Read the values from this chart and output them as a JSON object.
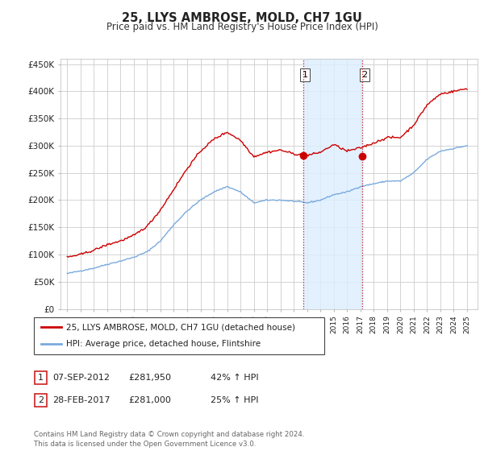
{
  "title": "25, LLYS AMBROSE, MOLD, CH7 1GU",
  "subtitle": "Price paid vs. HM Land Registry's House Price Index (HPI)",
  "sale1_date": "07-SEP-2012",
  "sale1_price": 281950,
  "sale1_hpi": "42% ↑ HPI",
  "sale2_date": "28-FEB-2017",
  "sale2_price": 281000,
  "sale2_hpi": "25% ↑ HPI",
  "legend1": "25, LLYS AMBROSE, MOLD, CH7 1GU (detached house)",
  "legend2": "HPI: Average price, detached house, Flintshire",
  "footer": "Contains HM Land Registry data © Crown copyright and database right 2024.\nThis data is licensed under the Open Government Licence v3.0.",
  "ylabel_ticks": [
    "£0",
    "£50K",
    "£100K",
    "£150K",
    "£200K",
    "£250K",
    "£300K",
    "£350K",
    "£400K",
    "£450K"
  ],
  "ytick_values": [
    0,
    50000,
    100000,
    150000,
    200000,
    250000,
    300000,
    350000,
    400000,
    450000
  ],
  "ylim": [
    0,
    460000
  ],
  "hpi_color": "#7aaadd",
  "price_color": "#cc0000",
  "sale1_x": 2012.69,
  "sale2_x": 2017.16,
  "shade_color": "#ddeeff",
  "background_color": "#ffffff",
  "grid_color": "#cccccc",
  "hpi_base": [
    65000,
    70000,
    75000,
    82000,
    88000,
    95000,
    105000,
    125000,
    155000,
    180000,
    200000,
    215000,
    225000,
    215000,
    195000,
    200000,
    200000,
    198000,
    195000,
    200000,
    210000,
    215000,
    225000,
    230000,
    235000,
    235000,
    250000,
    275000,
    290000,
    295000,
    300000
  ],
  "price_base": [
    95000,
    100000,
    108000,
    118000,
    125000,
    135000,
    152000,
    182000,
    220000,
    258000,
    290000,
    312000,
    325000,
    310000,
    280000,
    288000,
    292000,
    285000,
    282000,
    288000,
    302000,
    290000,
    296000,
    305000,
    315000,
    315000,
    338000,
    375000,
    395000,
    400000,
    405000
  ],
  "xmin": 1994.5,
  "xmax": 2025.8
}
